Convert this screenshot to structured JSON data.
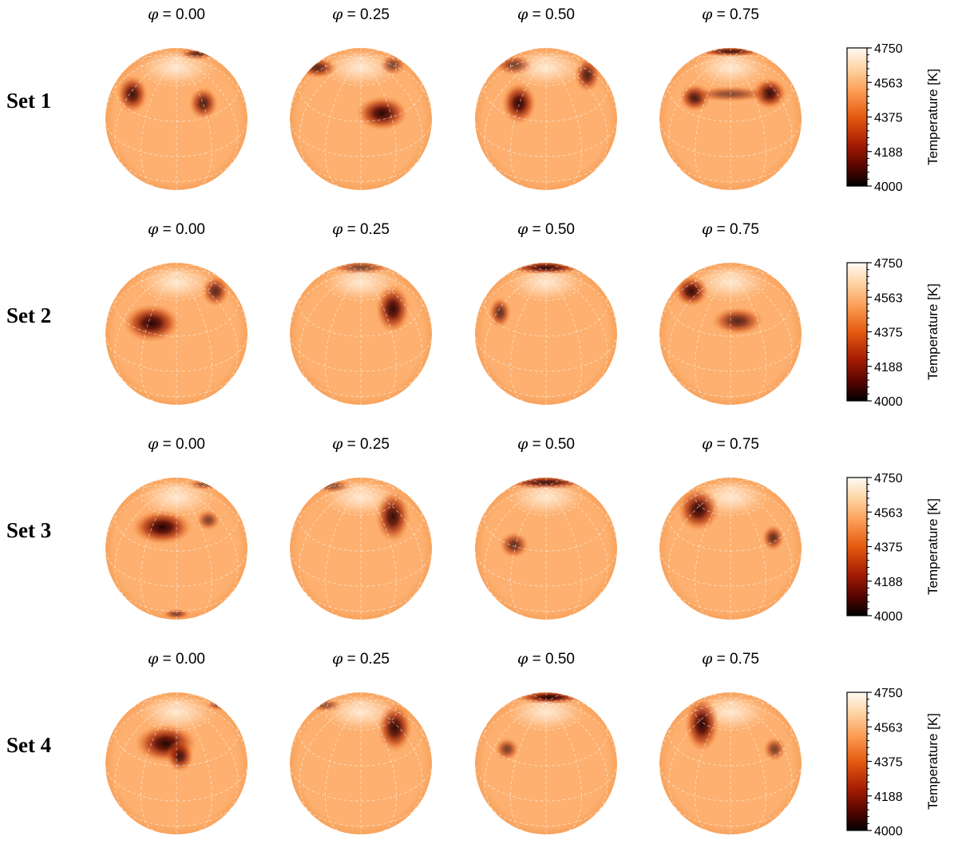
{
  "colorbar": {
    "title": "Temperature [K]",
    "ticks": [
      "4750",
      "4563",
      "4375",
      "4188",
      "4000"
    ],
    "min": 4000,
    "max": 4750
  },
  "phases": [
    "0.00",
    "0.25",
    "0.50",
    "0.75"
  ],
  "phase_symbol": "φ",
  "phase_separator": " = ",
  "colors": {
    "photosphere": "#fdb06f",
    "limb": "#f8a25c",
    "hot": "#fff4e4",
    "cool": "#140000",
    "grid": "#ffffff"
  },
  "sets": [
    {
      "label": "Set 1",
      "maps": [
        {
          "spots": [
            {
              "cx": -0.62,
              "cy": -0.35,
              "rx": 0.18,
              "ry": 0.22,
              "strength": 0.88
            },
            {
              "cx": 0.38,
              "cy": -0.22,
              "rx": 0.17,
              "ry": 0.19,
              "strength": 0.8
            },
            {
              "cx": 0.3,
              "cy": -0.92,
              "rx": 0.22,
              "ry": 0.07,
              "strength": 0.72
            }
          ]
        },
        {
          "spots": [
            {
              "cx": 0.3,
              "cy": -0.08,
              "rx": 0.3,
              "ry": 0.2,
              "strength": 0.95
            },
            {
              "cx": -0.6,
              "cy": -0.72,
              "rx": 0.22,
              "ry": 0.12,
              "strength": 0.75
            },
            {
              "cx": 0.45,
              "cy": -0.76,
              "rx": 0.15,
              "ry": 0.12,
              "strength": 0.6
            }
          ]
        },
        {
          "spots": [
            {
              "cx": -0.38,
              "cy": -0.22,
              "rx": 0.2,
              "ry": 0.24,
              "strength": 0.95
            },
            {
              "cx": 0.58,
              "cy": -0.62,
              "rx": 0.15,
              "ry": 0.2,
              "strength": 0.8
            },
            {
              "cx": -0.45,
              "cy": -0.76,
              "rx": 0.22,
              "ry": 0.12,
              "strength": 0.62
            }
          ]
        },
        {
          "spots": [
            {
              "cx": -0.5,
              "cy": -0.3,
              "rx": 0.18,
              "ry": 0.16,
              "strength": 0.85
            },
            {
              "cx": 0.55,
              "cy": -0.36,
              "rx": 0.2,
              "ry": 0.18,
              "strength": 0.92
            },
            {
              "cx": 0.0,
              "cy": -0.35,
              "rx": 0.45,
              "ry": 0.09,
              "strength": 0.55
            },
            {
              "cx": 0.0,
              "cy": -0.95,
              "rx": 0.4,
              "ry": 0.06,
              "strength": 0.85
            }
          ]
        }
      ]
    },
    {
      "label": "Set 2",
      "maps": [
        {
          "spots": [
            {
              "cx": -0.35,
              "cy": -0.15,
              "rx": 0.33,
              "ry": 0.22,
              "strength": 0.96
            },
            {
              "cx": 0.55,
              "cy": -0.6,
              "rx": 0.16,
              "ry": 0.18,
              "strength": 0.75
            }
          ]
        },
        {
          "spots": [
            {
              "cx": 0.45,
              "cy": -0.35,
              "rx": 0.2,
              "ry": 0.28,
              "strength": 0.93
            },
            {
              "cx": 0.0,
              "cy": -0.93,
              "rx": 0.35,
              "ry": 0.08,
              "strength": 0.6
            }
          ]
        },
        {
          "spots": [
            {
              "cx": 0.0,
              "cy": -0.93,
              "rx": 0.45,
              "ry": 0.08,
              "strength": 0.92
            },
            {
              "cx": -0.65,
              "cy": -0.3,
              "rx": 0.13,
              "ry": 0.18,
              "strength": 0.72
            }
          ]
        },
        {
          "spots": [
            {
              "cx": -0.55,
              "cy": -0.6,
              "rx": 0.2,
              "ry": 0.18,
              "strength": 0.92
            },
            {
              "cx": 0.1,
              "cy": -0.18,
              "rx": 0.3,
              "ry": 0.16,
              "strength": 0.76
            }
          ]
        }
      ]
    },
    {
      "label": "Set 3",
      "maps": [
        {
          "spots": [
            {
              "cx": -0.2,
              "cy": -0.3,
              "rx": 0.35,
              "ry": 0.2,
              "strength": 0.97
            },
            {
              "cx": 0.45,
              "cy": -0.4,
              "rx": 0.14,
              "ry": 0.12,
              "strength": 0.6
            },
            {
              "cx": 0.0,
              "cy": 0.92,
              "rx": 0.16,
              "ry": 0.06,
              "strength": 0.6
            },
            {
              "cx": 0.4,
              "cy": -0.9,
              "rx": 0.2,
              "ry": 0.06,
              "strength": 0.55
            }
          ]
        },
        {
          "spots": [
            {
              "cx": 0.45,
              "cy": -0.45,
              "rx": 0.2,
              "ry": 0.3,
              "strength": 0.9
            },
            {
              "cx": -0.4,
              "cy": -0.88,
              "rx": 0.22,
              "ry": 0.08,
              "strength": 0.55
            }
          ]
        },
        {
          "spots": [
            {
              "cx": 0.0,
              "cy": -0.93,
              "rx": 0.5,
              "ry": 0.08,
              "strength": 0.86
            },
            {
              "cx": -0.45,
              "cy": -0.05,
              "rx": 0.17,
              "ry": 0.15,
              "strength": 0.72
            }
          ]
        },
        {
          "spots": [
            {
              "cx": -0.45,
              "cy": -0.55,
              "rx": 0.24,
              "ry": 0.25,
              "strength": 0.93
            },
            {
              "cx": 0.6,
              "cy": -0.15,
              "rx": 0.13,
              "ry": 0.15,
              "strength": 0.72
            }
          ]
        }
      ]
    },
    {
      "label": "Set 4",
      "maps": [
        {
          "spots": [
            {
              "cx": -0.15,
              "cy": -0.28,
              "rx": 0.36,
              "ry": 0.22,
              "strength": 0.96
            },
            {
              "cx": 0.05,
              "cy": -0.1,
              "rx": 0.16,
              "ry": 0.18,
              "strength": 0.85
            },
            {
              "cx": 0.6,
              "cy": -0.82,
              "rx": 0.16,
              "ry": 0.06,
              "strength": 0.5
            }
          ]
        },
        {
          "spots": [
            {
              "cx": 0.48,
              "cy": -0.5,
              "rx": 0.2,
              "ry": 0.28,
              "strength": 0.92
            },
            {
              "cx": -0.5,
              "cy": -0.82,
              "rx": 0.2,
              "ry": 0.08,
              "strength": 0.5
            }
          ]
        },
        {
          "spots": [
            {
              "cx": 0.05,
              "cy": -0.93,
              "rx": 0.4,
              "ry": 0.08,
              "strength": 0.97
            },
            {
              "cx": -0.55,
              "cy": -0.2,
              "rx": 0.14,
              "ry": 0.13,
              "strength": 0.62
            }
          ]
        },
        {
          "spots": [
            {
              "cx": -0.4,
              "cy": -0.55,
              "rx": 0.2,
              "ry": 0.32,
              "strength": 0.95
            },
            {
              "cx": 0.62,
              "cy": -0.2,
              "rx": 0.13,
              "ry": 0.14,
              "strength": 0.62
            }
          ]
        }
      ]
    }
  ]
}
